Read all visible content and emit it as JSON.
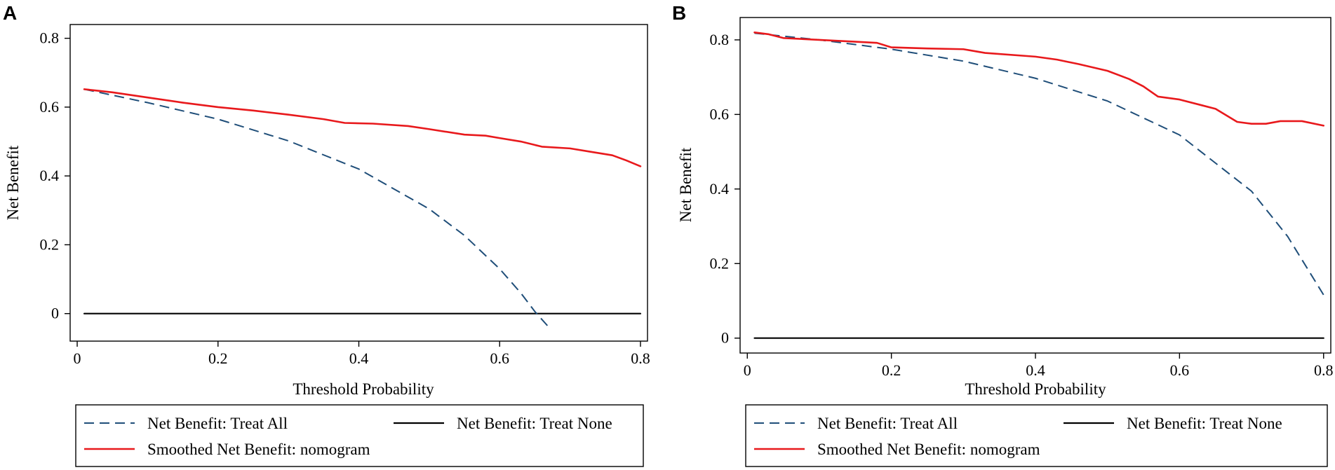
{
  "colors": {
    "treat_all": "#1f4e79",
    "treat_none": "#000000",
    "nomogram": "#e8191c"
  },
  "chart_data": [
    {
      "panel": "A",
      "type": "line",
      "xlabel": "Threshold Probability",
      "ylabel": "Net Benefit",
      "xlim": [
        -0.01,
        0.81
      ],
      "ylim": [
        -0.08,
        0.84
      ],
      "xticks": [
        0,
        0.2,
        0.4,
        0.6,
        0.8
      ],
      "xtick_labels": [
        "0",
        "0.2",
        "0.4",
        "0.6",
        "0.8"
      ],
      "yticks": [
        0,
        0.2,
        0.4,
        0.6,
        0.8
      ],
      "ytick_labels": [
        "0",
        "0.2",
        "0.4",
        "0.6",
        "0.8"
      ],
      "legend": [
        "Net Benefit: Treat All",
        "Net Benefit: Treat None",
        "Smoothed Net Benefit: nomogram"
      ],
      "series": [
        {
          "name": "Net Benefit: Treat All",
          "style": "dashed",
          "color_key": "treat_all",
          "x": [
            0.01,
            0.1,
            0.2,
            0.3,
            0.4,
            0.5,
            0.55,
            0.6,
            0.63,
            0.65,
            0.67
          ],
          "y": [
            0.652,
            0.613,
            0.565,
            0.502,
            0.42,
            0.304,
            0.227,
            0.13,
            0.06,
            0.006,
            -0.04
          ]
        },
        {
          "name": "Net Benefit: Treat None",
          "style": "solid",
          "color_key": "treat_none",
          "x": [
            0.01,
            0.8
          ],
          "y": [
            0,
            0
          ]
        },
        {
          "name": "Smoothed Net Benefit: nomogram",
          "style": "solid",
          "color_key": "nomogram",
          "x": [
            0.01,
            0.05,
            0.1,
            0.15,
            0.2,
            0.25,
            0.3,
            0.35,
            0.38,
            0.42,
            0.47,
            0.5,
            0.55,
            0.58,
            0.6,
            0.63,
            0.66,
            0.7,
            0.73,
            0.76,
            0.78,
            0.8
          ],
          "y": [
            0.652,
            0.643,
            0.628,
            0.613,
            0.6,
            0.59,
            0.578,
            0.565,
            0.554,
            0.552,
            0.545,
            0.536,
            0.52,
            0.517,
            0.51,
            0.5,
            0.485,
            0.48,
            0.47,
            0.46,
            0.445,
            0.428
          ]
        }
      ]
    },
    {
      "panel": "B",
      "type": "line",
      "xlabel": "Threshold Probability",
      "ylabel": "Net Benefit",
      "xlim": [
        -0.01,
        0.81
      ],
      "ylim": [
        -0.04,
        0.86
      ],
      "xticks": [
        0,
        0.2,
        0.4,
        0.6,
        0.8
      ],
      "xtick_labels": [
        "0",
        "0.2",
        "0.4",
        "0.6",
        "0.8"
      ],
      "yticks": [
        0,
        0.2,
        0.4,
        0.6,
        0.8
      ],
      "ytick_labels": [
        "0",
        "0.2",
        "0.4",
        "0.6",
        "0.8"
      ],
      "legend": [
        "Net Benefit: Treat All",
        "Net Benefit: Treat None",
        "Smoothed Net Benefit: nomogram"
      ],
      "series": [
        {
          "name": "Net Benefit: Treat All",
          "style": "dashed",
          "color_key": "treat_all",
          "x": [
            0.01,
            0.1,
            0.2,
            0.3,
            0.4,
            0.5,
            0.6,
            0.7,
            0.75,
            0.8
          ],
          "y": [
            0.818,
            0.8,
            0.775,
            0.743,
            0.697,
            0.636,
            0.545,
            0.394,
            0.273,
            0.116
          ]
        },
        {
          "name": "Net Benefit: Treat None",
          "style": "solid",
          "color_key": "treat_none",
          "x": [
            0.01,
            0.8
          ],
          "y": [
            0,
            0
          ]
        },
        {
          "name": "Smoothed Net Benefit: nomogram",
          "style": "solid",
          "color_key": "nomogram",
          "x": [
            0.01,
            0.03,
            0.05,
            0.1,
            0.15,
            0.18,
            0.2,
            0.25,
            0.3,
            0.33,
            0.4,
            0.43,
            0.46,
            0.5,
            0.53,
            0.55,
            0.57,
            0.6,
            0.63,
            0.65,
            0.68,
            0.7,
            0.72,
            0.74,
            0.77,
            0.8
          ],
          "y": [
            0.82,
            0.815,
            0.805,
            0.8,
            0.795,
            0.792,
            0.78,
            0.777,
            0.775,
            0.765,
            0.755,
            0.747,
            0.735,
            0.717,
            0.695,
            0.675,
            0.648,
            0.64,
            0.625,
            0.615,
            0.58,
            0.575,
            0.575,
            0.582,
            0.582,
            0.57
          ]
        }
      ]
    }
  ]
}
